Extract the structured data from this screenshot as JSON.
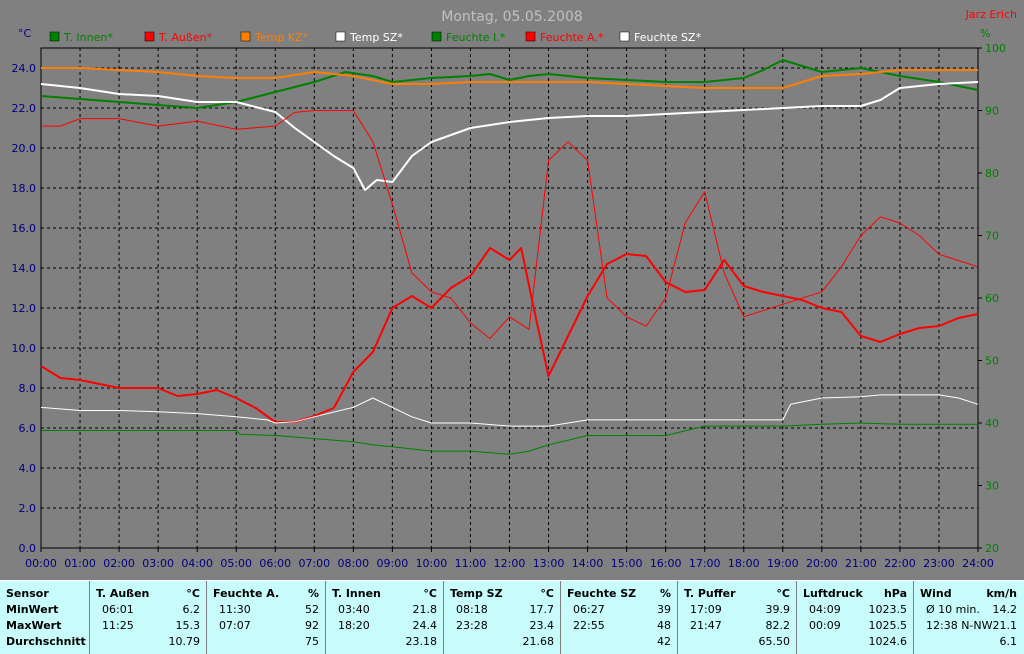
{
  "chart_data": {
    "type": "line",
    "title": "Montag, 05.05.2008",
    "author": "Jarz Erich",
    "y_left_unit": "°C",
    "y_right_unit": "%",
    "ylim_left": [
      0,
      25
    ],
    "ylim_right": [
      20,
      100
    ],
    "y_left_ticks": [
      "0.0",
      "2.0",
      "4.0",
      "6.0",
      "8.0",
      "10.0",
      "12.0",
      "14.0",
      "16.0",
      "18.0",
      "20.0",
      "22.0",
      "24.0"
    ],
    "y_right_ticks": [
      "20",
      "30",
      "40",
      "50",
      "60",
      "70",
      "80",
      "90",
      "100"
    ],
    "x_ticks": [
      "00:00",
      "01:00",
      "02:00",
      "03:00",
      "04:00",
      "05:00",
      "06:00",
      "07:00",
      "08:00",
      "09:00",
      "10:00",
      "11:00",
      "12:00",
      "13:00",
      "14:00",
      "15:00",
      "16:00",
      "17:00",
      "18:00",
      "19:00",
      "20:00",
      "21:00",
      "22:00",
      "23:00",
      "24:00"
    ],
    "grid": true,
    "legend_position": "top",
    "series": [
      {
        "name": "T. Innen*",
        "axis": "left",
        "color": "#008000",
        "legend_color": "#008000",
        "width": 2,
        "x": [
          0,
          2,
          4,
          5,
          6,
          7,
          7.8,
          8.5,
          9,
          10,
          11,
          11.5,
          12,
          12.5,
          13,
          14,
          15,
          16,
          17,
          18,
          18.5,
          19,
          20,
          21,
          22,
          23,
          24
        ],
        "y": [
          22.6,
          22.3,
          22.0,
          22.3,
          22.8,
          23.3,
          23.8,
          23.6,
          23.3,
          23.5,
          23.6,
          23.7,
          23.4,
          23.6,
          23.7,
          23.5,
          23.4,
          23.3,
          23.3,
          23.5,
          23.9,
          24.4,
          23.8,
          24.0,
          23.6,
          23.3,
          22.9
        ]
      },
      {
        "name": "T. Außen*",
        "axis": "left",
        "color": "#ff0000",
        "legend_color": "#ff0000",
        "width": 2,
        "x": [
          0,
          0.5,
          1,
          2,
          3,
          3.5,
          4,
          4.5,
          5,
          5.5,
          6,
          6.5,
          7,
          7.5,
          8,
          8.5,
          9,
          9.5,
          10,
          10.5,
          11,
          11.5,
          12,
          12.3,
          12.6,
          13,
          13.5,
          14,
          14.5,
          15,
          15.5,
          16,
          16.5,
          17,
          17.5,
          18,
          18.5,
          19,
          19.5,
          20,
          20.5,
          21,
          21.5,
          22,
          22.5,
          23,
          23.5,
          24
        ],
        "y": [
          9.1,
          8.5,
          8.4,
          8.0,
          8.0,
          7.6,
          7.7,
          7.9,
          7.5,
          7.0,
          6.3,
          6.3,
          6.6,
          7.0,
          8.8,
          9.8,
          12.0,
          12.6,
          12.0,
          13.0,
          13.6,
          15.0,
          14.4,
          15.0,
          12.2,
          8.6,
          10.6,
          12.6,
          14.2,
          14.7,
          14.6,
          13.3,
          12.8,
          12.9,
          14.4,
          13.1,
          12.8,
          12.6,
          12.4,
          12.0,
          11.8,
          10.6,
          10.3,
          10.7,
          11.0,
          11.1,
          11.5,
          11.7
        ]
      },
      {
        "name": "Temp KZ*",
        "axis": "left",
        "color": "#ff8000",
        "legend_color": "#ff8000",
        "width": 2,
        "x": [
          0,
          1,
          2,
          3,
          4,
          5,
          6,
          7,
          8,
          9,
          10,
          11,
          12,
          13,
          14,
          15,
          16,
          17,
          18,
          19,
          20,
          21,
          22,
          23,
          24
        ],
        "y": [
          24.0,
          24.0,
          23.9,
          23.8,
          23.6,
          23.5,
          23.5,
          23.8,
          23.6,
          23.2,
          23.2,
          23.3,
          23.3,
          23.3,
          23.3,
          23.2,
          23.1,
          23.0,
          23.0,
          23.0,
          23.6,
          23.7,
          23.9,
          23.9,
          23.9
        ]
      },
      {
        "name": "Temp SZ*",
        "axis": "left",
        "color": "#ffffff",
        "legend_color": "#ffffff",
        "width": 2,
        "x": [
          0,
          1,
          2,
          3,
          4,
          5,
          6,
          6.5,
          7,
          7.5,
          8,
          8.3,
          8.6,
          9,
          9.5,
          10,
          11,
          12,
          13,
          14,
          15,
          16,
          17,
          18,
          19,
          20,
          21,
          21.5,
          22,
          23,
          24
        ],
        "y": [
          23.2,
          23.0,
          22.7,
          22.6,
          22.3,
          22.3,
          21.8,
          21.0,
          20.3,
          19.6,
          19.0,
          17.9,
          18.4,
          18.3,
          19.6,
          20.3,
          21.0,
          21.3,
          21.5,
          21.6,
          21.6,
          21.7,
          21.8,
          21.9,
          22.0,
          22.1,
          22.1,
          22.4,
          23.0,
          23.2,
          23.3
        ]
      },
      {
        "name": "Feuchte I.*",
        "axis": "right",
        "color": "#008000",
        "legend_color": "#008000",
        "width": 1,
        "x": [
          0,
          1,
          2,
          3,
          4,
          5,
          5.1,
          6,
          7,
          8,
          8.5,
          9,
          10,
          11,
          12,
          12.5,
          13,
          14,
          15,
          16,
          17,
          18,
          19,
          20,
          21,
          22,
          23,
          24
        ],
        "y": [
          38.8,
          38.8,
          38.8,
          38.8,
          38.8,
          38.8,
          38.2,
          38.0,
          37.5,
          37.0,
          36.5,
          36.2,
          35.5,
          35.5,
          35.0,
          35.5,
          36.5,
          38.0,
          38.0,
          38.0,
          39.5,
          39.5,
          39.5,
          39.8,
          40.0,
          39.8,
          39.8,
          39.8
        ]
      },
      {
        "name": "Feuchte A.*",
        "axis": "right",
        "color": "#ff0000",
        "legend_color": "#ff0000",
        "width": 1,
        "x": [
          0,
          0.5,
          1,
          2,
          3,
          4,
          5,
          6,
          6.5,
          7,
          8,
          8.5,
          9,
          9.5,
          10,
          10.5,
          11,
          11.5,
          12,
          12.5,
          13,
          13.5,
          14,
          14.5,
          15,
          15.5,
          16,
          16.5,
          17,
          17.5,
          18,
          19,
          20,
          20.5,
          21,
          21.5,
          22,
          22.5,
          23,
          23.5,
          24
        ],
        "y": [
          87.5,
          87.5,
          88.7,
          88.7,
          87.5,
          88.3,
          87.0,
          87.5,
          89.7,
          90.0,
          90.0,
          85.0,
          75.0,
          64.0,
          61.0,
          60.0,
          56.0,
          53.5,
          57.0,
          55.0,
          82.0,
          85.0,
          82.0,
          60.0,
          57.0,
          55.5,
          60.0,
          72.0,
          77.0,
          64.0,
          57.0,
          59.0,
          61.0,
          65.0,
          70.0,
          73.0,
          72.0,
          70.0,
          67.0,
          66.0,
          65.0
        ]
      },
      {
        "name": "Feuchte SZ*",
        "axis": "right",
        "color": "#ffffff",
        "legend_color": "#ffffff",
        "width": 1,
        "x": [
          0,
          1,
          2,
          3,
          4,
          5,
          5.8,
          6,
          6.5,
          7,
          8,
          8.5,
          9,
          9.5,
          10,
          11,
          12,
          12.5,
          13,
          13.5,
          14,
          15,
          16,
          17,
          18,
          19,
          19.2,
          20,
          21,
          21.5,
          22,
          23,
          23.5,
          24
        ],
        "y": [
          42.5,
          42.0,
          42.0,
          41.8,
          41.5,
          41.0,
          40.5,
          40.0,
          40.2,
          41.0,
          42.5,
          44.0,
          42.5,
          41.0,
          40.0,
          40.0,
          39.5,
          39.5,
          39.5,
          40.0,
          40.5,
          40.5,
          40.5,
          40.5,
          40.5,
          40.5,
          43.0,
          44.0,
          44.2,
          44.5,
          44.5,
          44.5,
          44.0,
          43.0
        ]
      }
    ]
  },
  "stats": {
    "columns": [
      {
        "title": "Sensor",
        "unit": "",
        "rows": [
          {
            "label": "MinWert",
            "time": "",
            "value": ""
          },
          {
            "label": "MaxWert",
            "time": "",
            "value": ""
          },
          {
            "label": "Durchschnitt",
            "time": "",
            "value": ""
          }
        ]
      },
      {
        "title": "T. Außen",
        "unit": "°C",
        "rows": [
          {
            "label": "",
            "time": "06:01",
            "value": "6.2"
          },
          {
            "label": "",
            "time": "11:25",
            "value": "15.3"
          },
          {
            "label": "",
            "time": "",
            "value": "10.79"
          }
        ]
      },
      {
        "title": "Feuchte A.",
        "unit": "%",
        "rows": [
          {
            "label": "",
            "time": "11:30",
            "value": "52"
          },
          {
            "label": "",
            "time": "07:07",
            "value": "92"
          },
          {
            "label": "",
            "time": "",
            "value": "75"
          }
        ]
      },
      {
        "title": "T. Innen",
        "unit": "°C",
        "rows": [
          {
            "label": "",
            "time": "03:40",
            "value": "21.8"
          },
          {
            "label": "",
            "time": "18:20",
            "value": "24.4"
          },
          {
            "label": "",
            "time": "",
            "value": "23.18"
          }
        ]
      },
      {
        "title": "Temp SZ",
        "unit": "°C",
        "rows": [
          {
            "label": "",
            "time": "08:18",
            "value": "17.7"
          },
          {
            "label": "",
            "time": "23:28",
            "value": "23.4"
          },
          {
            "label": "",
            "time": "",
            "value": "21.68"
          }
        ]
      },
      {
        "title": "Feuchte SZ",
        "unit": "%",
        "rows": [
          {
            "label": "",
            "time": "06:27",
            "value": "39"
          },
          {
            "label": "",
            "time": "22:55",
            "value": "48"
          },
          {
            "label": "",
            "time": "",
            "value": "42"
          }
        ]
      },
      {
        "title": "T. Puffer",
        "unit": "°C",
        "rows": [
          {
            "label": "",
            "time": "17:09",
            "value": "39.9"
          },
          {
            "label": "",
            "time": "21:47",
            "value": "82.2"
          },
          {
            "label": "",
            "time": "",
            "value": "65.50"
          }
        ]
      },
      {
        "title": "Luftdruck",
        "unit": "hPa",
        "rows": [
          {
            "label": "",
            "time": "04:09",
            "value": "1023.5"
          },
          {
            "label": "",
            "time": "00:09",
            "value": "1025.5"
          },
          {
            "label": "",
            "time": "",
            "value": "1024.6"
          }
        ]
      },
      {
        "title": "Wind",
        "unit": "km/h",
        "rows": [
          {
            "label": "",
            "time": "Ø 10 min.",
            "value": "14.2"
          },
          {
            "label": "",
            "time": "12:38   N-NW",
            "value": "21.1"
          },
          {
            "label": "",
            "time": "",
            "value": "6.1"
          }
        ]
      }
    ]
  }
}
